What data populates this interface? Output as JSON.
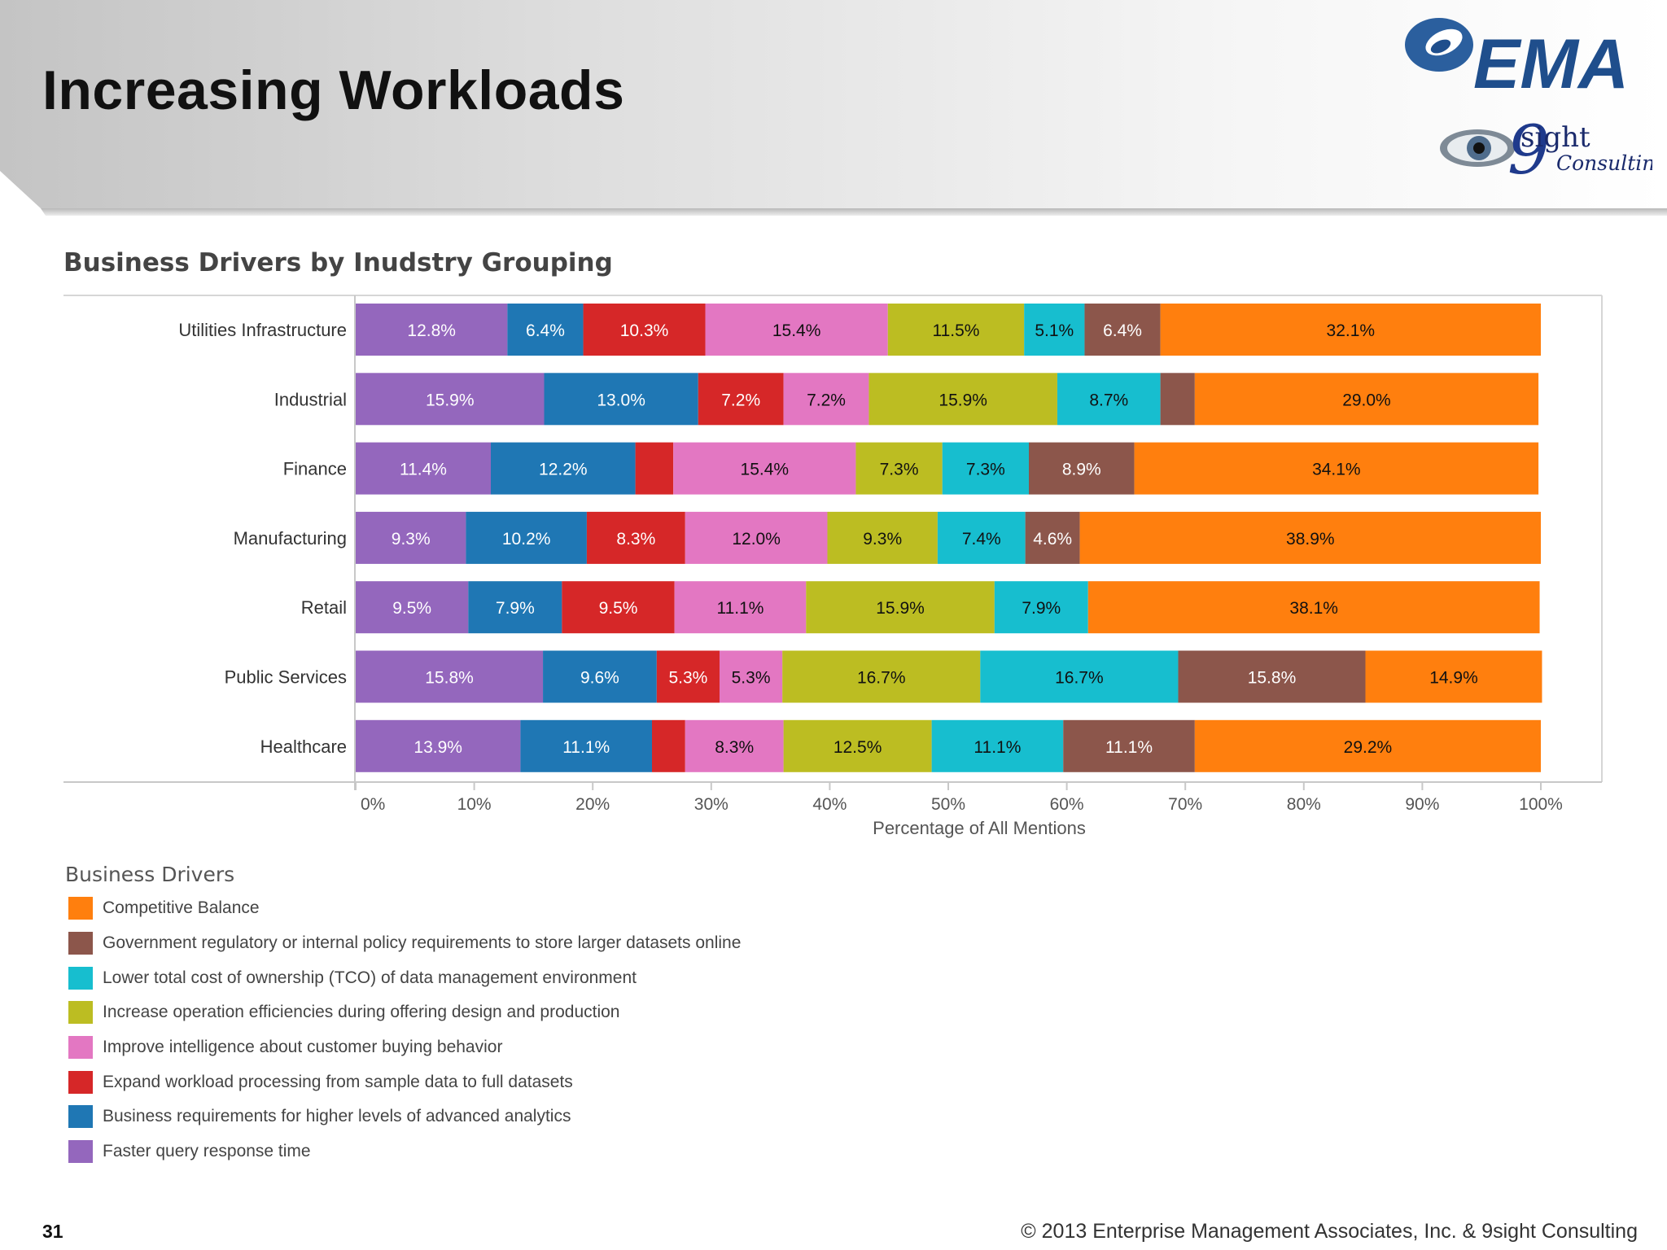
{
  "slide": {
    "title": "Increasing Workloads",
    "page_number": "31",
    "copyright": "© 2013 Enterprise Management Associates, Inc. & 9sight Consulting"
  },
  "logos": {
    "ema_text": "EMA",
    "ninesight_numeral": "9",
    "ninesight_text": "sight",
    "ninesight_sub": "Consulting",
    "ema_blue": "#1f4e8c"
  },
  "legend": {
    "title": "Business Drivers",
    "items": [
      {
        "label": "Competitive Balance",
        "color": "#ff7f0e"
      },
      {
        "label": "Government regulatory or internal policy requirements to store larger datasets online",
        "color": "#8c564b"
      },
      {
        "label": "Lower total cost of ownership (TCO) of data management environment",
        "color": "#17becf"
      },
      {
        "label": "Increase operation efficiencies during offering design and production",
        "color": "#bcbd22"
      },
      {
        "label": "Improve intelligence about customer buying behavior",
        "color": "#e377c2"
      },
      {
        "label": "Expand workload processing from sample data to full datasets",
        "color": "#d62728"
      },
      {
        "label": "Business requirements for higher levels of advanced analytics",
        "color": "#1f77b4"
      },
      {
        "label": "Faster query response time",
        "color": "#9467bd"
      }
    ]
  },
  "chart_data": {
    "type": "bar",
    "orientation": "horizontal",
    "stacked": true,
    "title": "Business Drivers by Inudstry Grouping",
    "xlabel": "Percentage of All Mentions",
    "ylabel": "",
    "xlim": [
      0,
      100
    ],
    "x_ticks": [
      "0%",
      "10%",
      "20%",
      "30%",
      "40%",
      "50%",
      "60%",
      "70%",
      "80%",
      "90%",
      "100%"
    ],
    "categories": [
      "Utilities Infrastructure",
      "Industrial",
      "Finance",
      "Manufacturing",
      "Retail",
      "Public Services",
      "Healthcare"
    ],
    "series": [
      {
        "name": "Faster query response time",
        "color": "#9467bd",
        "values": [
          12.8,
          15.9,
          11.4,
          9.3,
          9.5,
          15.8,
          13.9
        ],
        "labels": [
          "12.8%",
          "15.9%",
          "11.4%",
          "9.3%",
          "9.5%",
          "15.8%",
          "13.9%"
        ]
      },
      {
        "name": "Business requirements for higher levels of advanced analytics",
        "color": "#1f77b4",
        "values": [
          6.4,
          13.0,
          12.2,
          10.2,
          7.9,
          9.6,
          11.1
        ],
        "labels": [
          "6.4%",
          "13.0%",
          "12.2%",
          "10.2%",
          "7.9%",
          "9.6%",
          "11.1%"
        ]
      },
      {
        "name": "Expand workload processing from sample data to full datasets",
        "color": "#d62728",
        "values": [
          10.3,
          7.2,
          3.2,
          8.3,
          9.5,
          5.3,
          2.8
        ],
        "labels": [
          "10.3%",
          "7.2%",
          "",
          "8.3%",
          "9.5%",
          "5.3%",
          ""
        ]
      },
      {
        "name": "Improve intelligence about customer buying behavior",
        "color": "#e377c2",
        "values": [
          15.4,
          7.2,
          15.4,
          12.0,
          11.1,
          5.3,
          8.3
        ],
        "labels": [
          "15.4%",
          "7.2%",
          "15.4%",
          "12.0%",
          "11.1%",
          "5.3%",
          "8.3%"
        ]
      },
      {
        "name": "Increase operation efficiencies during offering design and production",
        "color": "#bcbd22",
        "values": [
          11.5,
          15.9,
          7.3,
          9.3,
          15.9,
          16.7,
          12.5
        ],
        "labels": [
          "11.5%",
          "15.9%",
          "7.3%",
          "9.3%",
          "15.9%",
          "16.7%",
          "12.5%"
        ]
      },
      {
        "name": "Lower total cost of ownership (TCO) of data management environment",
        "color": "#17becf",
        "values": [
          5.1,
          8.7,
          7.3,
          7.4,
          7.9,
          16.7,
          11.1
        ],
        "labels": [
          "5.1%",
          "8.7%",
          "7.3%",
          "7.4%",
          "7.9%",
          "16.7%",
          "11.1%"
        ]
      },
      {
        "name": "Government regulatory or internal policy requirements to store larger datasets online",
        "color": "#8c564b",
        "values": [
          6.4,
          2.9,
          8.9,
          4.6,
          0,
          15.8,
          11.1
        ],
        "labels": [
          "6.4%",
          "",
          "8.9%",
          "4.6%",
          "",
          "15.8%",
          "11.1%"
        ]
      },
      {
        "name": "Competitive Balance",
        "color": "#ff7f0e",
        "values": [
          32.1,
          29.0,
          34.1,
          38.9,
          38.1,
          14.9,
          29.2
        ],
        "labels": [
          "32.1%",
          "29.0%",
          "34.1%",
          "38.9%",
          "38.1%",
          "14.9%",
          "29.2%"
        ]
      }
    ],
    "grid": false,
    "legend_position": "bottom-left"
  }
}
